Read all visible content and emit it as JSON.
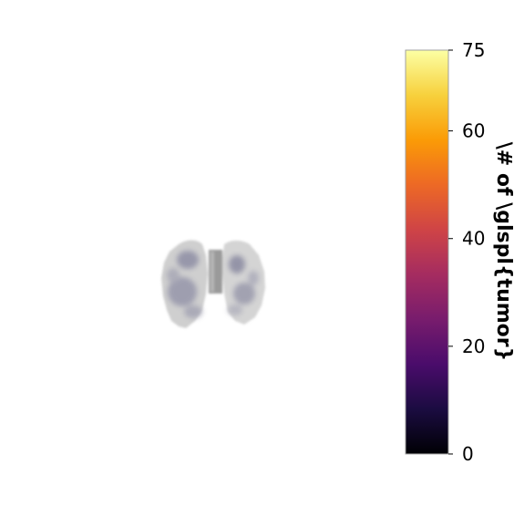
{
  "chart_data": {
    "type": "heatmap",
    "title": "",
    "image": "lung-projection",
    "colorbar": {
      "label": "\\# of \\glspl{tumor}",
      "colormap": "inferno",
      "range": [
        0,
        75
      ],
      "ticks": [
        0,
        20,
        40,
        60,
        75
      ],
      "tick_labels": [
        "0",
        "20",
        "40",
        "60",
        "75"
      ],
      "colorbar_bg": "#a0a0a0",
      "stops": [
        "#000004",
        "#1b0c41",
        "#4a0c6b",
        "#781c6d",
        "#a52c60",
        "#cf4446",
        "#ed6925",
        "#fb9b06",
        "#f7d13d",
        "#fcffa4"
      ]
    }
  }
}
